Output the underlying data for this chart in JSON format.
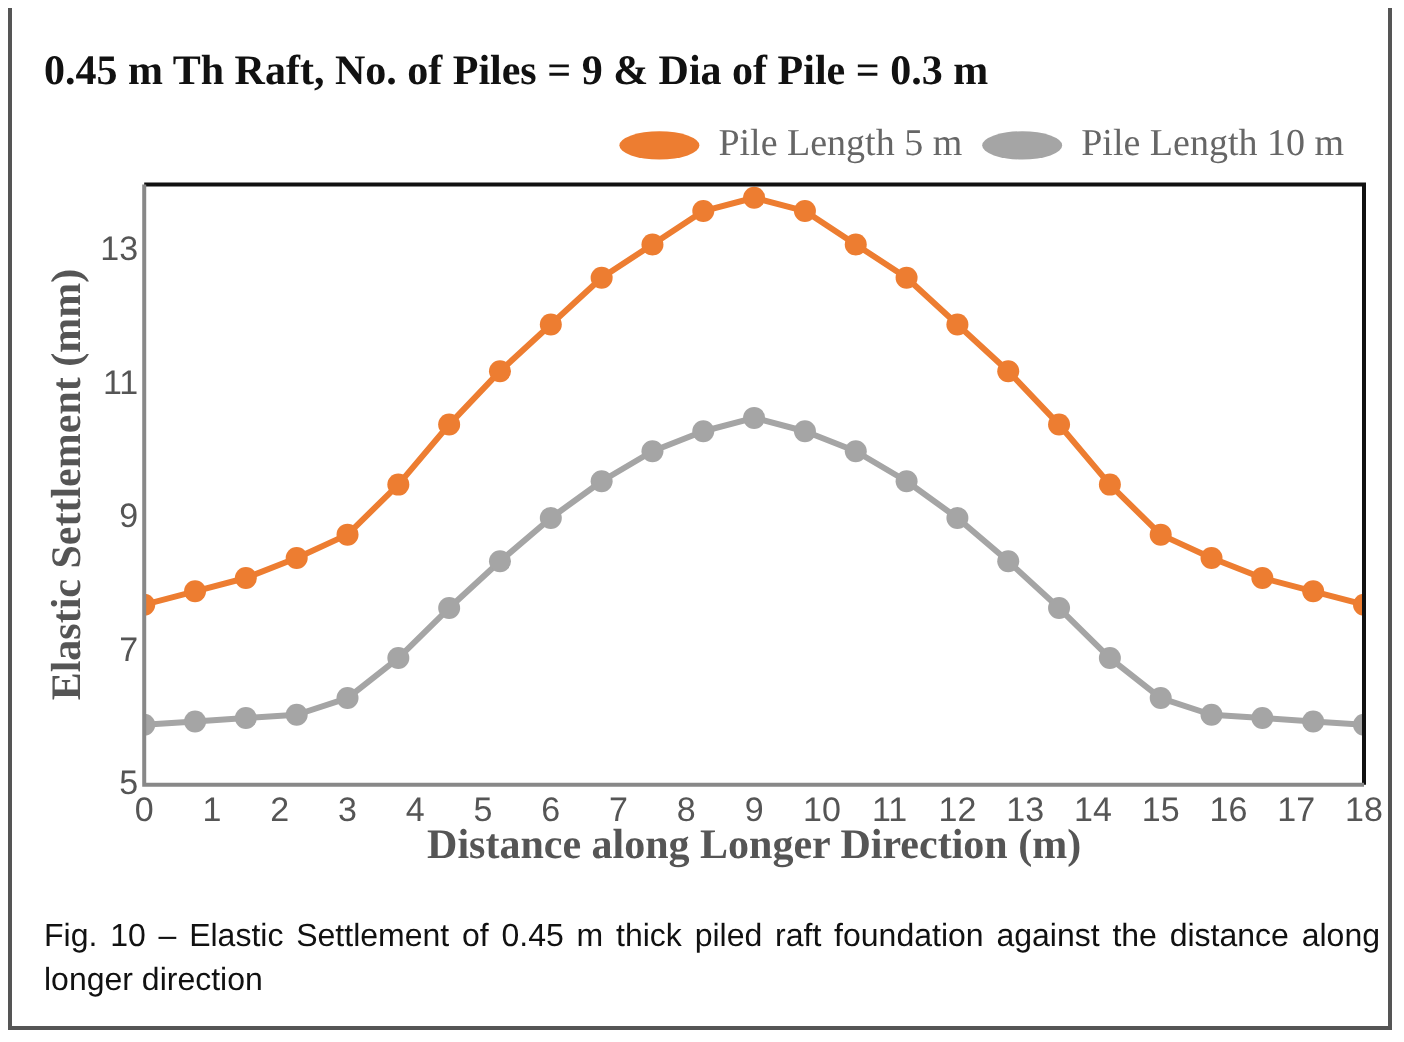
{
  "chart_data": {
    "type": "line",
    "title": "0.45 m Th Raft, No. of Piles = 9 & Dia of Pile = 0.3 m",
    "xlabel": "Distance along Longer Direction (m)",
    "ylabel": "Elastic Settlement (mm)",
    "annotations": [
      "Fig. 10 – Elastic Settlement of 0.45 m thick piled raft foundation against the distance along longer direction"
    ],
    "x": [
      0,
      0.75,
      1.5,
      2.25,
      3,
      3.75,
      4.5,
      5.25,
      6,
      6.75,
      7.5,
      8.25,
      9,
      9.75,
      10.5,
      11.25,
      12,
      12.75,
      13.5,
      14.25,
      15,
      15.75,
      16.5,
      17.25,
      18
    ],
    "series": [
      {
        "name": "Pile Length 5 m",
        "color": "#ed7d31",
        "values": [
          7.7,
          7.9,
          8.1,
          8.4,
          8.75,
          9.5,
          10.4,
          11.2,
          11.9,
          12.6,
          13.1,
          13.6,
          13.8,
          13.6,
          13.1,
          12.6,
          11.9,
          11.2,
          10.4,
          9.5,
          8.75,
          8.4,
          8.1,
          7.9,
          7.7
        ]
      },
      {
        "name": "Pile Length 10 m",
        "color": "#a5a5a5",
        "values": [
          5.9,
          5.95,
          6.0,
          6.05,
          6.3,
          6.9,
          7.65,
          8.35,
          9.0,
          9.55,
          10.0,
          10.3,
          10.5,
          10.3,
          10.0,
          9.55,
          9.0,
          8.35,
          7.65,
          6.9,
          6.3,
          6.05,
          6.0,
          5.95,
          5.9
        ]
      }
    ],
    "xlim": [
      0,
      18
    ],
    "xticks": [
      0,
      1,
      2,
      3,
      4,
      5,
      6,
      7,
      8,
      9,
      10,
      11,
      12,
      13,
      14,
      15,
      16,
      17,
      18
    ],
    "ylim": [
      5,
      14
    ],
    "yticks": [
      5,
      7,
      9,
      11,
      13
    ],
    "legend": "top",
    "marker": "circle"
  }
}
